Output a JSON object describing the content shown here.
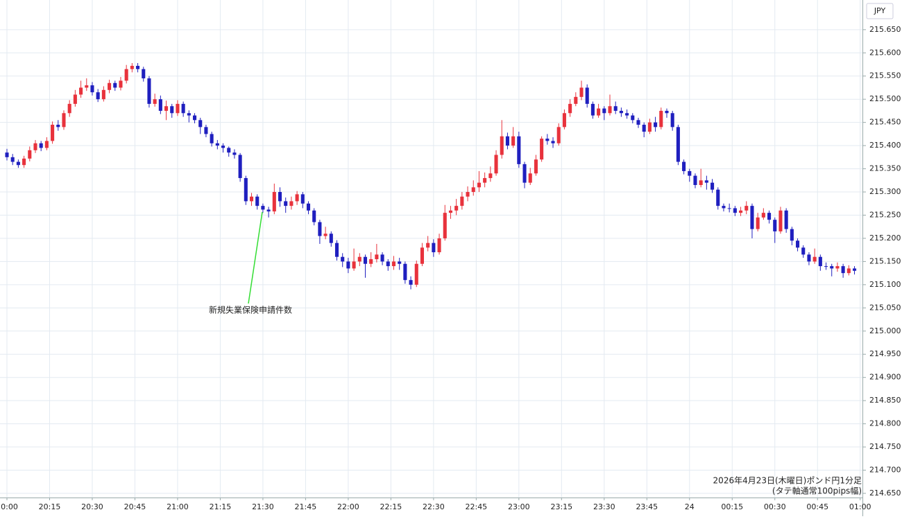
{
  "chart_data": {
    "type": "candlestick",
    "currency": "JPY",
    "annotation": "新規失業保険申請件数",
    "footnote": [
      "2026年4月23日(木曜日)ポンド円1分足",
      "(タテ軸通常100pips幅)"
    ],
    "up_color": "#e8323c",
    "down_color": "#1f1fbf",
    "grid": true,
    "xlim": [
      -1.22,
      150.4
    ],
    "xticks": [
      {
        "value": 0,
        "label": "20:00"
      },
      {
        "value": 7.5,
        "label": "20:15"
      },
      {
        "value": 15,
        "label": "20:30"
      },
      {
        "value": 22.5,
        "label": "20:45"
      },
      {
        "value": 30,
        "label": "21:00"
      },
      {
        "value": 37.5,
        "label": "21:15"
      },
      {
        "value": 45,
        "label": "21:30"
      },
      {
        "value": 52.5,
        "label": "21:45"
      },
      {
        "value": 60,
        "label": "22:00"
      },
      {
        "value": 67.5,
        "label": "22:15"
      },
      {
        "value": 75,
        "label": "22:30"
      },
      {
        "value": 82.5,
        "label": "22:45"
      },
      {
        "value": 90,
        "label": "23:00"
      },
      {
        "value": 97.5,
        "label": "23:15"
      },
      {
        "value": 105,
        "label": "23:30"
      },
      {
        "value": 112.5,
        "label": "23:45"
      },
      {
        "value": 120,
        "label": "24"
      },
      {
        "value": 127.5,
        "label": "00:15"
      },
      {
        "value": 135,
        "label": "00:30"
      },
      {
        "value": 142.5,
        "label": "00:45"
      },
      {
        "value": 150,
        "label": "01:00"
      }
    ],
    "ylim": [
      214.641,
      215.714
    ],
    "yticks": [
      {
        "value": 214.65,
        "label": "214.650"
      },
      {
        "value": 214.7,
        "label": "214.700"
      },
      {
        "value": 214.75,
        "label": "214.750"
      },
      {
        "value": 214.8,
        "label": "214.800"
      },
      {
        "value": 214.85,
        "label": "214.850"
      },
      {
        "value": 214.9,
        "label": "214.900"
      },
      {
        "value": 214.95,
        "label": "214.950"
      },
      {
        "value": 215,
        "label": "215.000"
      },
      {
        "value": 215.05,
        "label": "215.050"
      },
      {
        "value": 215.1,
        "label": "215.100"
      },
      {
        "value": 215.15,
        "label": "215.150"
      },
      {
        "value": 215.2,
        "label": "215.200"
      },
      {
        "value": 215.25,
        "label": "215.250"
      },
      {
        "value": 215.3,
        "label": "215.300"
      },
      {
        "value": 215.35,
        "label": "215.350"
      },
      {
        "value": 215.4,
        "label": "215.400"
      },
      {
        "value": 215.45,
        "label": "215.450"
      },
      {
        "value": 215.5,
        "label": "215.500"
      },
      {
        "value": 215.55,
        "label": "215.550"
      },
      {
        "value": 215.6,
        "label": "215.600"
      },
      {
        "value": 215.65,
        "label": "215.650"
      }
    ],
    "open": [
      215.385,
      215.375,
      215.365,
      215.358,
      215.372,
      215.39,
      215.405,
      215.395,
      215.41,
      215.445,
      215.44,
      215.47,
      215.49,
      215.51,
      215.525,
      215.53,
      215.515,
      215.5,
      215.52,
      215.535,
      215.525,
      215.54,
      215.565,
      215.572,
      215.565,
      215.545,
      215.49,
      215.5,
      215.475,
      215.485,
      215.47,
      215.49,
      215.47,
      215.465,
      215.455,
      215.44,
      215.425,
      215.405,
      215.4,
      215.395,
      215.385,
      215.38,
      215.33,
      215.28,
      215.29,
      215.27,
      215.262,
      215.258,
      215.3,
      215.28,
      215.27,
      215.28,
      215.295,
      215.275,
      215.26,
      215.235,
      215.205,
      215.21,
      215.19,
      215.16,
      215.15,
      215.135,
      215.15,
      215.16,
      215.145,
      215.155,
      215.165,
      215.15,
      215.14,
      215.15,
      215.145,
      215.11,
      215.1,
      215.145,
      215.18,
      215.19,
      215.17,
      215.2,
      215.255,
      215.26,
      215.27,
      215.29,
      215.3,
      215.31,
      215.32,
      215.33,
      215.34,
      215.38,
      215.42,
      215.4,
      215.42,
      215.36,
      215.32,
      215.34,
      215.37,
      215.415,
      215.41,
      215.405,
      215.44,
      215.47,
      215.49,
      215.505,
      215.525,
      215.49,
      215.465,
      215.48,
      215.47,
      215.485,
      215.475,
      215.47,
      215.465,
      215.455,
      215.445,
      215.43,
      215.45,
      215.44,
      215.475,
      215.47,
      215.44,
      215.365,
      215.345,
      215.335,
      215.315,
      215.325,
      215.32,
      215.305,
      215.27,
      215.265,
      215.265,
      215.255,
      215.26,
      215.27,
      215.22,
      215.245,
      215.255,
      215.24,
      215.215,
      215.26,
      215.22,
      215.195,
      215.18,
      215.165,
      215.15,
      215.16,
      215.14,
      215.14,
      215.135,
      215.14,
      215.125,
      215.135
    ],
    "high": [
      215.393,
      215.382,
      215.37,
      215.378,
      215.398,
      215.412,
      215.41,
      215.418,
      215.452,
      215.455,
      215.476,
      215.498,
      215.52,
      215.54,
      215.545,
      215.537,
      215.522,
      215.528,
      215.542,
      215.54,
      215.548,
      215.574,
      215.578,
      215.578,
      215.57,
      215.55,
      215.512,
      215.508,
      215.497,
      215.49,
      215.498,
      215.495,
      215.476,
      215.47,
      215.46,
      215.445,
      215.43,
      215.412,
      215.405,
      215.398,
      215.392,
      215.384,
      215.335,
      215.298,
      215.295,
      215.275,
      215.268,
      215.318,
      215.31,
      215.288,
      215.29,
      215.302,
      215.3,
      215.28,
      215.265,
      215.24,
      215.225,
      215.215,
      215.196,
      215.168,
      215.158,
      215.178,
      215.168,
      215.165,
      215.17,
      215.188,
      215.17,
      215.155,
      215.162,
      215.158,
      215.15,
      215.118,
      215.152,
      215.19,
      215.205,
      215.198,
      215.21,
      215.272,
      215.27,
      215.285,
      215.3,
      215.312,
      215.325,
      215.345,
      215.342,
      215.355,
      215.39,
      215.455,
      215.428,
      215.44,
      215.43,
      215.365,
      215.352,
      215.38,
      215.42,
      215.425,
      215.418,
      215.448,
      215.478,
      215.5,
      215.515,
      215.54,
      215.532,
      215.495,
      215.49,
      215.485,
      215.51,
      215.495,
      215.482,
      215.478,
      215.47,
      215.46,
      215.45,
      215.458,
      215.462,
      215.482,
      215.48,
      215.475,
      215.445,
      215.37,
      215.35,
      215.34,
      215.35,
      215.335,
      215.328,
      215.31,
      215.275,
      215.275,
      215.27,
      215.268,
      215.28,
      215.275,
      215.255,
      215.265,
      215.26,
      215.245,
      215.268,
      215.265,
      215.225,
      215.2,
      215.185,
      215.17,
      215.178,
      215.165,
      215.148,
      215.145,
      215.148,
      215.145,
      215.142,
      215.14
    ],
    "low": [
      215.368,
      215.358,
      215.352,
      215.352,
      215.366,
      215.384,
      215.388,
      215.39,
      215.404,
      215.432,
      215.434,
      215.462,
      215.484,
      215.503,
      215.518,
      215.508,
      215.494,
      215.495,
      215.513,
      215.518,
      215.519,
      215.534,
      215.558,
      215.558,
      215.538,
      215.482,
      215.484,
      215.468,
      215.455,
      215.46,
      215.464,
      215.462,
      215.45,
      215.448,
      215.425,
      215.418,
      215.398,
      215.392,
      215.385,
      215.376,
      215.372,
      215.322,
      215.272,
      215.27,
      215.262,
      215.255,
      215.245,
      215.252,
      215.268,
      215.255,
      215.262,
      215.272,
      215.265,
      215.252,
      215.228,
      215.188,
      215.198,
      215.182,
      215.152,
      215.138,
      215.125,
      215.13,
      215.14,
      215.115,
      215.138,
      215.148,
      215.142,
      215.13,
      215.132,
      215.132,
      215.102,
      215.09,
      215.095,
      215.14,
      215.172,
      215.16,
      215.165,
      215.195,
      215.242,
      215.25,
      215.262,
      215.28,
      215.292,
      215.3,
      215.31,
      215.322,
      215.335,
      215.372,
      215.392,
      215.395,
      215.352,
      215.308,
      215.315,
      215.335,
      215.365,
      215.402,
      215.395,
      215.4,
      215.435,
      215.462,
      215.485,
      215.498,
      215.482,
      215.458,
      215.46,
      215.455,
      215.465,
      215.468,
      215.462,
      215.458,
      215.448,
      215.438,
      215.418,
      215.425,
      215.43,
      215.435,
      215.46,
      215.432,
      215.358,
      215.338,
      215.322,
      215.308,
      215.31,
      215.305,
      215.298,
      215.262,
      215.258,
      215.256,
      215.248,
      215.248,
      215.252,
      215.2,
      215.215,
      215.24,
      215.232,
      215.19,
      215.21,
      215.212,
      215.185,
      215.172,
      215.158,
      215.142,
      215.145,
      215.13,
      215.132,
      215.118,
      215.128,
      215.115,
      215.12,
      215.122
    ],
    "close": [
      215.375,
      215.365,
      215.358,
      215.372,
      215.39,
      215.405,
      215.395,
      215.41,
      215.445,
      215.44,
      215.47,
      215.49,
      215.51,
      215.525,
      215.53,
      215.515,
      215.5,
      215.52,
      215.535,
      215.525,
      215.54,
      215.565,
      215.572,
      215.565,
      215.545,
      215.49,
      215.5,
      215.475,
      215.485,
      215.47,
      215.49,
      215.47,
      215.465,
      215.455,
      215.44,
      215.425,
      215.405,
      215.4,
      215.395,
      215.385,
      215.38,
      215.33,
      215.28,
      215.29,
      215.27,
      215.262,
      215.258,
      215.3,
      215.28,
      215.27,
      215.28,
      215.295,
      215.275,
      215.26,
      215.235,
      215.205,
      215.21,
      215.19,
      215.16,
      215.15,
      215.135,
      215.15,
      215.16,
      215.145,
      215.155,
      215.165,
      215.15,
      215.14,
      215.15,
      215.145,
      215.11,
      215.1,
      215.145,
      215.18,
      215.19,
      215.17,
      215.2,
      215.255,
      215.26,
      215.27,
      215.29,
      215.3,
      215.31,
      215.32,
      215.33,
      215.34,
      215.38,
      215.42,
      215.4,
      215.42,
      215.36,
      215.32,
      215.34,
      215.37,
      215.415,
      215.41,
      215.405,
      215.44,
      215.47,
      215.49,
      215.505,
      215.525,
      215.49,
      215.465,
      215.48,
      215.47,
      215.485,
      215.475,
      215.47,
      215.465,
      215.455,
      215.445,
      215.43,
      215.45,
      215.44,
      215.475,
      215.47,
      215.44,
      215.365,
      215.345,
      215.335,
      215.315,
      215.325,
      215.32,
      215.305,
      215.27,
      215.265,
      215.265,
      215.255,
      215.26,
      215.27,
      215.22,
      215.245,
      215.255,
      215.24,
      215.215,
      215.26,
      215.22,
      215.195,
      215.18,
      215.165,
      215.15,
      215.16,
      215.14,
      215.14,
      215.135,
      215.14,
      215.125,
      215.135,
      215.13
    ]
  }
}
